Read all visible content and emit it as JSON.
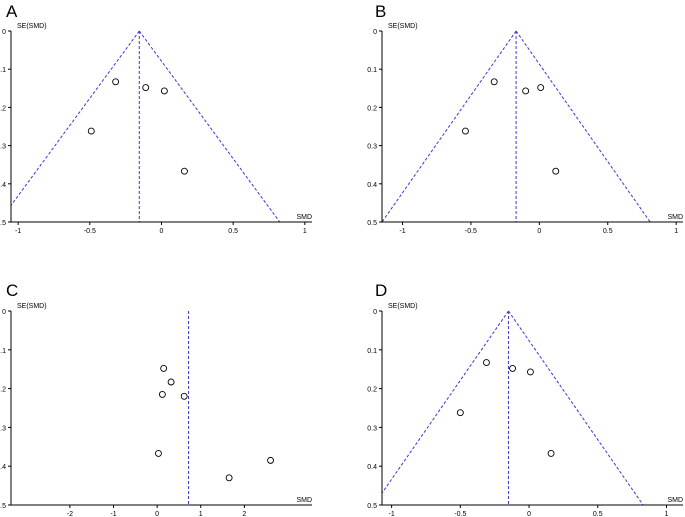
{
  "chart_data": [
    {
      "type": "scatter",
      "panel": "A",
      "xlabel": "SMD",
      "ylabel": "SE(SMD)",
      "xlim": [
        -1.05,
        1.05
      ],
      "ylim": [
        0,
        0.5
      ],
      "y_reversed": true,
      "xticks": [
        -1,
        -0.5,
        0,
        0.5,
        1
      ],
      "yticks": [
        0,
        0.1,
        0.2,
        0.3,
        0.4,
        0.5
      ],
      "points": [
        {
          "x": -0.32,
          "y": 0.133
        },
        {
          "x": -0.11,
          "y": 0.148
        },
        {
          "x": 0.02,
          "y": 0.157
        },
        {
          "x": -0.49,
          "y": 0.262
        },
        {
          "x": 0.16,
          "y": 0.367
        }
      ],
      "pooled_smd": -0.155,
      "funnel": true
    },
    {
      "type": "scatter",
      "panel": "B",
      "xlabel": "SMD",
      "ylabel": "SE(SMD)",
      "xlim": [
        -1.15,
        1.05
      ],
      "ylim": [
        0,
        0.5
      ],
      "y_reversed": true,
      "xticks": [
        -1,
        -0.5,
        0,
        0.5,
        1
      ],
      "yticks": [
        0,
        0.1,
        0.2,
        0.3,
        0.4,
        0.5
      ],
      "points": [
        {
          "x": -0.33,
          "y": 0.133
        },
        {
          "x": -0.1,
          "y": 0.157
        },
        {
          "x": 0.01,
          "y": 0.148
        },
        {
          "x": -0.54,
          "y": 0.262
        },
        {
          "x": 0.12,
          "y": 0.367
        }
      ],
      "pooled_smd": -0.17,
      "funnel": true
    },
    {
      "type": "scatter",
      "panel": "C",
      "xlabel": "SMD",
      "ylabel": "SE(SMD)",
      "xlim": [
        -3.35,
        3.55
      ],
      "ylim": [
        0,
        0.5
      ],
      "y_reversed": true,
      "xticks": [
        -2,
        -1,
        0,
        1,
        2
      ],
      "yticks": [
        0,
        0.1,
        0.2,
        0.3,
        0.4,
        0.5
      ],
      "points": [
        {
          "x": 0.15,
          "y": 0.148
        },
        {
          "x": 0.32,
          "y": 0.183
        },
        {
          "x": 0.12,
          "y": 0.215
        },
        {
          "x": 0.62,
          "y": 0.22
        },
        {
          "x": 0.03,
          "y": 0.367
        },
        {
          "x": 1.65,
          "y": 0.43
        },
        {
          "x": 2.6,
          "y": 0.385
        }
      ],
      "pooled_smd": 0.72,
      "funnel": false
    },
    {
      "type": "scatter",
      "panel": "D",
      "xlabel": "SMD",
      "ylabel": "SE(SMD)",
      "xlim": [
        -1.07,
        1.12
      ],
      "ylim": [
        0,
        0.5
      ],
      "y_reversed": true,
      "xticks": [
        -1,
        -0.5,
        0,
        0.5,
        1
      ],
      "yticks": [
        0,
        0.1,
        0.2,
        0.3,
        0.4,
        0.5
      ],
      "points": [
        {
          "x": -0.31,
          "y": 0.133
        },
        {
          "x": -0.12,
          "y": 0.148
        },
        {
          "x": 0.01,
          "y": 0.157
        },
        {
          "x": -0.5,
          "y": 0.262
        },
        {
          "x": 0.16,
          "y": 0.367
        }
      ],
      "pooled_smd": -0.15,
      "funnel": true
    }
  ]
}
